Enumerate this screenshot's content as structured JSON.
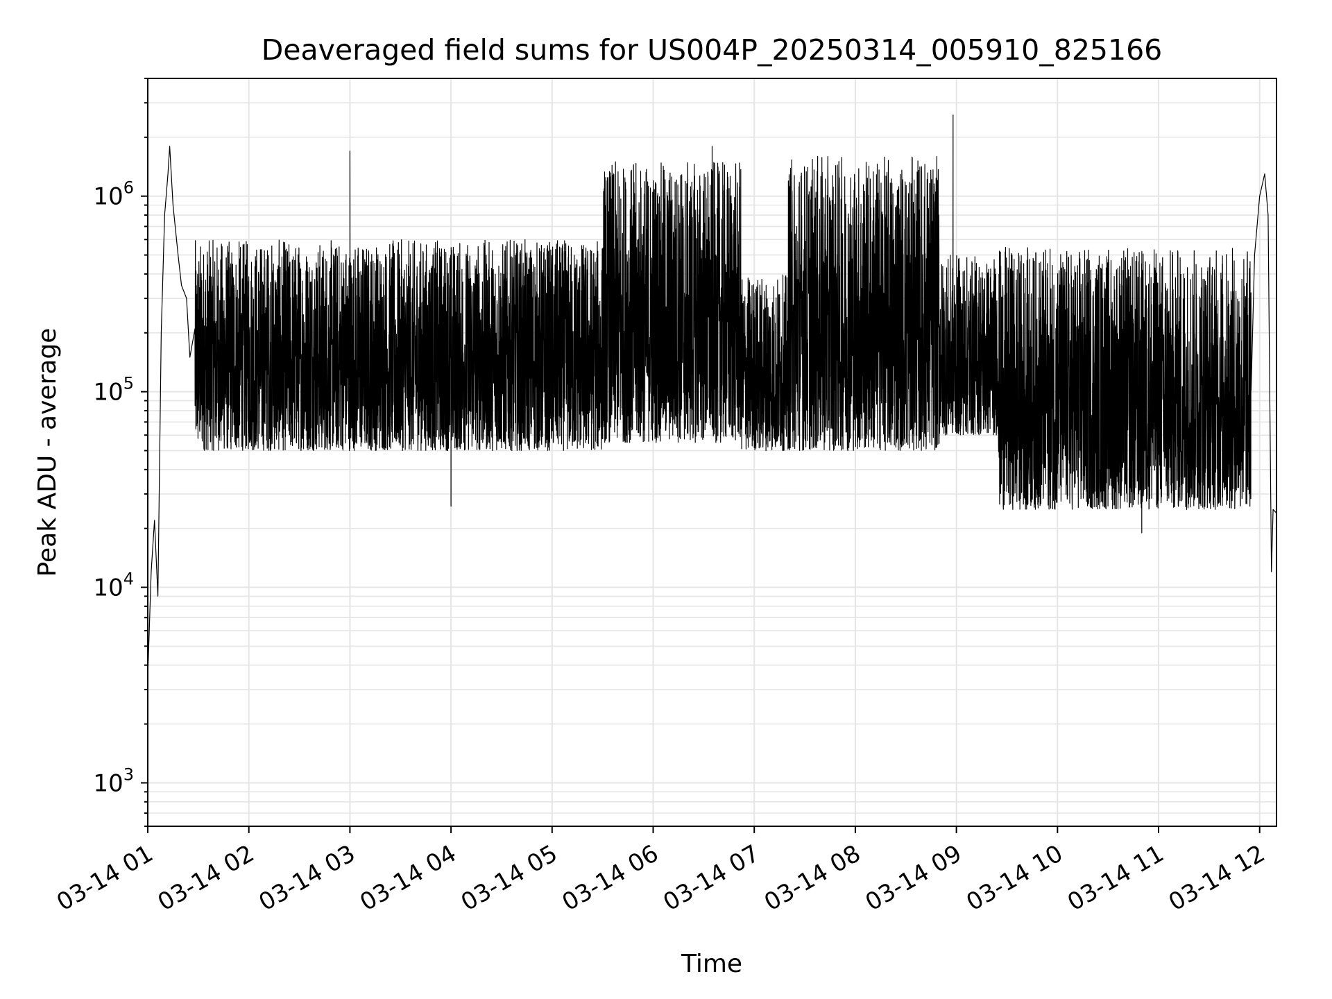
{
  "chart_data": {
    "type": "line",
    "title": "Deaveraged field sums for US004P_20250314_005910_825166",
    "xlabel": "Time",
    "ylabel": "Peak ADU - average",
    "x_scale": "time",
    "y_scale": "log",
    "xlim": [
      "2025-03-14 01:00",
      "2025-03-14 12:10"
    ],
    "ylim": [
      600,
      4000000
    ],
    "grid": true,
    "x_ticks": [
      {
        "value": "2025-03-14 01:00",
        "label": "03-14 01"
      },
      {
        "value": "2025-03-14 02:00",
        "label": "03-14 02"
      },
      {
        "value": "2025-03-14 03:00",
        "label": "03-14 03"
      },
      {
        "value": "2025-03-14 04:00",
        "label": "03-14 04"
      },
      {
        "value": "2025-03-14 05:00",
        "label": "03-14 05"
      },
      {
        "value": "2025-03-14 06:00",
        "label": "03-14 06"
      },
      {
        "value": "2025-03-14 07:00",
        "label": "03-14 07"
      },
      {
        "value": "2025-03-14 08:00",
        "label": "03-14 08"
      },
      {
        "value": "2025-03-14 09:00",
        "label": "03-14 09"
      },
      {
        "value": "2025-03-14 10:00",
        "label": "03-14 10"
      },
      {
        "value": "2025-03-14 11:00",
        "label": "03-14 11"
      },
      {
        "value": "2025-03-14 12:00",
        "label": "03-14 12"
      }
    ],
    "y_ticks": [
      {
        "value": 1000,
        "base": "10",
        "exp": "3"
      },
      {
        "value": 10000,
        "base": "10",
        "exp": "4"
      },
      {
        "value": 100000,
        "base": "10",
        "exp": "5"
      },
      {
        "value": 1000000,
        "base": "10",
        "exp": "6"
      }
    ],
    "line_color": "#000000",
    "grid_color": "#e5e5e5",
    "series": [
      {
        "points": [
          [
            "2025-03-14 01:00",
            3500
          ],
          [
            "2025-03-14 01:02",
            12000
          ],
          [
            "2025-03-14 01:04",
            22000
          ],
          [
            "2025-03-14 01:06",
            9000
          ],
          [
            "2025-03-14 01:08",
            200000
          ],
          [
            "2025-03-14 01:10",
            800000
          ],
          [
            "2025-03-14 01:12",
            1300000
          ],
          [
            "2025-03-14 01:13",
            1800000
          ],
          [
            "2025-03-14 01:15",
            900000
          ],
          [
            "2025-03-14 01:18",
            500000
          ],
          [
            "2025-03-14 01:20",
            350000
          ],
          [
            "2025-03-14 01:23",
            300000
          ],
          [
            "2025-03-14 01:25",
            150000
          ],
          [
            "2025-03-14 01:30",
            250000
          ],
          [
            "2025-03-14 01:37",
            180000
          ],
          [
            "2025-03-14 01:45",
            200000
          ],
          [
            "2025-03-14 02:00",
            180000
          ],
          [
            "2025-03-14 02:15",
            220000
          ],
          [
            "2025-03-14 02:30",
            250000
          ],
          [
            "2025-03-14 03:00",
            220000
          ],
          [
            "2025-03-14 03:30",
            180000
          ],
          [
            "2025-03-14 04:00",
            150000
          ],
          [
            "2025-03-14 04:30",
            130000
          ],
          [
            "2025-03-14 05:00",
            160000
          ],
          [
            "2025-03-14 05:20",
            300000
          ],
          [
            "2025-03-14 05:35",
            120000
          ],
          [
            "2025-03-14 06:00",
            100000
          ],
          [
            "2025-03-14 06:30",
            90000
          ],
          [
            "2025-03-14 07:00",
            70000
          ],
          [
            "2025-03-14 07:30",
            90000
          ],
          [
            "2025-03-14 08:00",
            150000
          ],
          [
            "2025-03-14 08:30",
            200000
          ],
          [
            "2025-03-14 08:55",
            120000
          ],
          [
            "2025-03-14 09:00",
            100000
          ],
          [
            "2025-03-14 09:30",
            60000
          ],
          [
            "2025-03-14 10:00",
            40000
          ],
          [
            "2025-03-14 10:30",
            50000
          ],
          [
            "2025-03-14 11:00",
            80000
          ],
          [
            "2025-03-14 11:30",
            150000
          ],
          [
            "2025-03-14 11:52",
            300000
          ],
          [
            "2025-03-14 11:57",
            500000
          ],
          [
            "2025-03-14 12:00",
            1000000
          ],
          [
            "2025-03-14 12:03",
            1300000
          ],
          [
            "2025-03-14 12:05",
            800000
          ],
          [
            "2025-03-14 12:07",
            12000
          ],
          [
            "2025-03-14 12:08",
            25000
          ],
          [
            "2025-03-14 12:10",
            24000
          ]
        ],
        "envelope": [
          {
            "from": "2025-03-14 01:28",
            "to": "2025-03-14 05:30",
            "low": 50000,
            "high": 600000
          },
          {
            "from": "2025-03-14 05:30",
            "to": "2025-03-14 06:52",
            "low": 55000,
            "high": 1500000
          },
          {
            "from": "2025-03-14 06:52",
            "to": "2025-03-14 07:20",
            "low": 50000,
            "high": 400000
          },
          {
            "from": "2025-03-14 07:20",
            "to": "2025-03-14 08:50",
            "low": 50000,
            "high": 1600000
          },
          {
            "from": "2025-03-14 08:50",
            "to": "2025-03-14 09:25",
            "low": 60000,
            "high": 500000
          },
          {
            "from": "2025-03-14 09:25",
            "to": "2025-03-14 11:55",
            "low": 25000,
            "high": 550000
          }
        ],
        "spikes": [
          [
            "2025-03-14 01:13",
            1800000
          ],
          [
            "2025-03-14 03:00",
            1700000
          ],
          [
            "2025-03-14 06:35",
            1800000
          ],
          [
            "2025-03-14 08:58",
            2600000
          ],
          [
            "2025-03-14 04:00",
            26000
          ],
          [
            "2025-03-14 10:50",
            19000
          ]
        ]
      }
    ]
  }
}
